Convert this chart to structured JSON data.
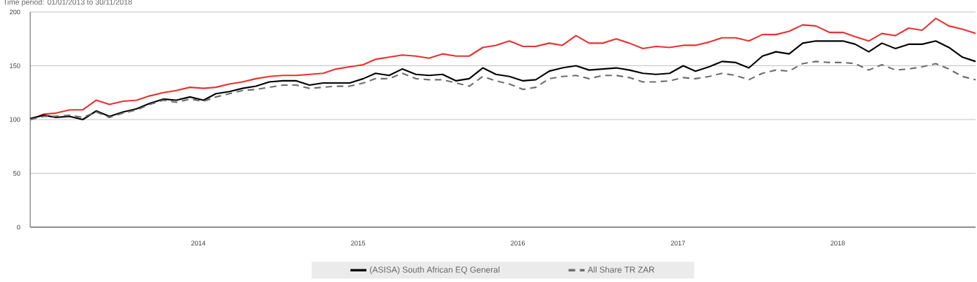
{
  "chart_data": {
    "type": "line",
    "title": "Time period: 01/01/2013 to 30/11/2018",
    "x": [
      "2012-12-31",
      "2013-01-31",
      "2013-02-28",
      "2013-03-31",
      "2013-04-30",
      "2013-05-31",
      "2013-06-30",
      "2013-07-31",
      "2013-08-31",
      "2013-09-30",
      "2013-10-31",
      "2013-11-30",
      "2013-12-31",
      "2014-01-31",
      "2014-02-28",
      "2014-03-31",
      "2014-04-30",
      "2014-05-31",
      "2014-06-30",
      "2014-07-31",
      "2014-08-31",
      "2014-09-30",
      "2014-10-31",
      "2014-11-30",
      "2014-12-31",
      "2015-01-31",
      "2015-02-28",
      "2015-03-31",
      "2015-04-30",
      "2015-05-31",
      "2015-06-30",
      "2015-07-31",
      "2015-08-31",
      "2015-09-30",
      "2015-10-31",
      "2015-11-30",
      "2015-12-31",
      "2016-01-31",
      "2016-02-29",
      "2016-03-31",
      "2016-04-30",
      "2016-05-31",
      "2016-06-30",
      "2016-07-31",
      "2016-08-31",
      "2016-09-30",
      "2016-10-31",
      "2016-11-30",
      "2016-12-31",
      "2017-01-31",
      "2017-02-28",
      "2017-03-31",
      "2017-04-30",
      "2017-05-31",
      "2017-06-30",
      "2017-07-31",
      "2017-08-31",
      "2017-09-30",
      "2017-10-31",
      "2017-11-30",
      "2017-12-31",
      "2018-01-31",
      "2018-02-28",
      "2018-03-31",
      "2018-04-30",
      "2018-05-31",
      "2018-06-30",
      "2018-07-31",
      "2018-08-31",
      "2018-09-30",
      "2018-10-31",
      "2018-11-30"
    ],
    "series": [
      {
        "color": "#e8312f",
        "values": [
          100,
          105,
          106,
          109,
          109,
          118,
          114,
          117,
          118,
          122,
          125,
          127,
          130,
          129,
          130,
          133,
          135,
          138,
          140,
          141,
          141,
          142,
          143,
          147,
          149,
          151,
          156,
          158,
          160,
          159,
          157,
          161,
          159,
          159,
          167,
          169,
          173,
          168,
          168,
          171,
          169,
          178,
          171,
          171,
          175,
          171,
          166,
          168,
          167,
          169,
          169,
          172,
          176,
          176,
          173,
          179,
          179,
          182,
          188,
          187,
          181,
          181,
          177,
          173,
          180,
          178,
          185,
          183,
          194,
          187,
          184,
          180
        ]
      },
      {
        "name": "(ASISA) South African EQ General",
        "color": "#000000",
        "values": [
          101,
          104,
          102,
          103,
          100,
          108,
          103,
          107,
          110,
          115,
          119,
          118,
          121,
          118,
          124,
          126,
          129,
          131,
          135,
          136,
          136,
          132,
          134,
          134,
          134,
          138,
          143,
          141,
          147,
          142,
          141,
          142,
          136,
          138,
          148,
          142,
          140,
          136,
          137,
          145,
          148,
          150,
          146,
          147,
          148,
          146,
          143,
          142,
          143,
          150,
          145,
          149,
          154,
          153,
          148,
          159,
          163,
          161,
          171,
          173,
          173,
          173,
          170,
          163,
          171,
          166,
          170,
          170,
          173,
          167,
          158,
          154
        ]
      },
      {
        "name": "All Share TR ZAR",
        "color": "#6d6e71",
        "line_style": "dashed",
        "values": [
          100,
          103,
          103,
          104,
          102,
          107,
          102,
          106,
          109,
          114,
          118,
          116,
          119,
          117,
          121,
          124,
          127,
          128,
          130,
          132,
          132,
          129,
          130,
          131,
          131,
          134,
          138,
          138,
          143,
          138,
          137,
          137,
          134,
          131,
          140,
          136,
          133,
          128,
          130,
          138,
          140,
          141,
          138,
          141,
          141,
          139,
          135,
          135,
          136,
          139,
          138,
          140,
          143,
          141,
          137,
          143,
          146,
          145,
          152,
          154,
          153,
          153,
          152,
          146,
          151,
          146,
          147,
          149,
          152,
          147,
          140,
          137
        ]
      }
    ],
    "xlim": [
      "2012-12-31",
      "2018-11-30"
    ],
    "xticks": [
      {
        "value": "2014-01-19",
        "label": "2014"
      },
      {
        "value": "2015-01-19",
        "label": "2015"
      },
      {
        "value": "2016-01-19",
        "label": "2016"
      },
      {
        "value": "2017-01-19",
        "label": "2017"
      },
      {
        "value": "2018-01-19",
        "label": "2018"
      }
    ],
    "ylim": [
      0,
      200
    ],
    "yticks": [
      0,
      50,
      100,
      150,
      200
    ],
    "grid": "y",
    "legend": "bottom",
    "marker": "none",
    "line_style": "solid"
  }
}
